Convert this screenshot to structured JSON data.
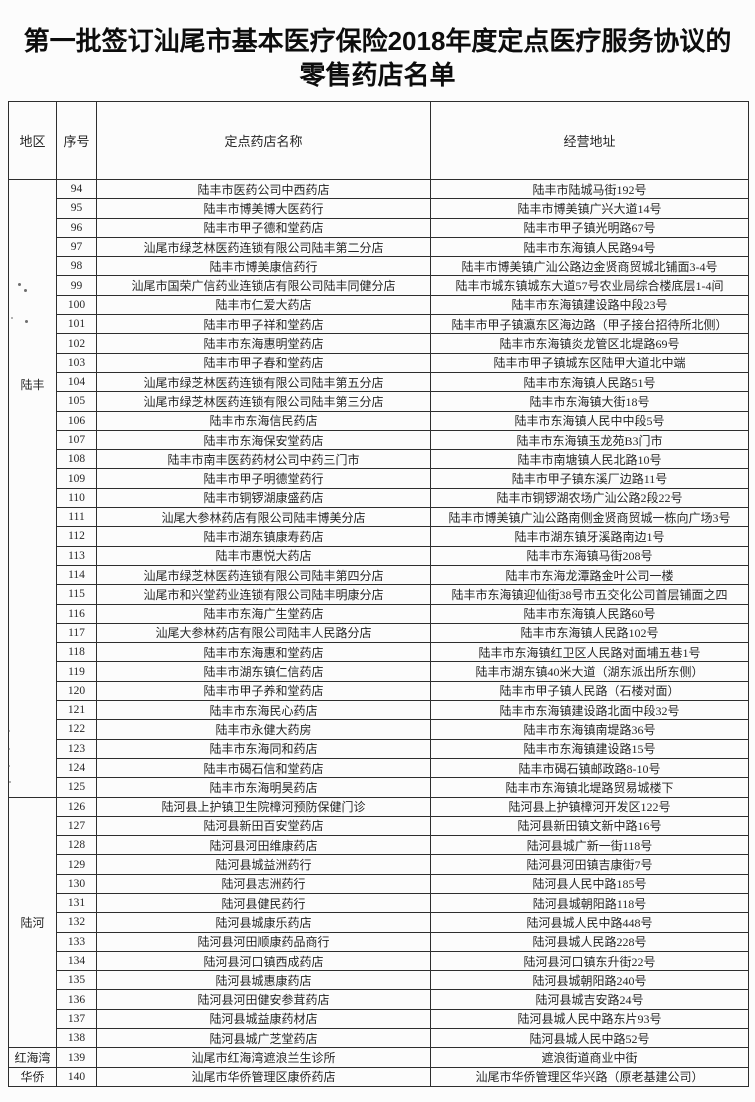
{
  "title": {
    "line1": "第一批签订汕尾市基本医疗保险2018年度定点医疗服务协议的",
    "line2": "零售药店名单"
  },
  "colors": {
    "paper": "#fcfcfc",
    "ink": "#262626",
    "border": "#2e2e2e"
  },
  "table": {
    "headers": [
      "地区",
      "序号",
      "定点药店名称",
      "经营地址"
    ],
    "regions": [
      {
        "name": "陆丰",
        "rows": [
          {
            "no": "94",
            "name": "陆丰市医药公司中西药店",
            "address": "陆丰市陆城马街192号"
          },
          {
            "no": "95",
            "name": "陆丰市博美博大医药行",
            "address": "陆丰市博美镇广兴大道14号"
          },
          {
            "no": "96",
            "name": "陆丰市甲子德和堂药店",
            "address": "陆丰市甲子镇光明路67号"
          },
          {
            "no": "97",
            "name": "汕尾市绿芝林医药连锁有限公司陆丰第二分店",
            "address": "陆丰市东海镇人民路94号"
          },
          {
            "no": "98",
            "name": "陆丰市博美康信药行",
            "address": "陆丰市博美镇广汕公路边金贤商贸城北铺面3-4号"
          },
          {
            "no": "99",
            "name": "汕尾市国荣广信药业连锁店有限公司陆丰同健分店",
            "address": "陆丰市城东镇城东大道57号农业局综合楼底层1-4间"
          },
          {
            "no": "100",
            "name": "陆丰市仁爱大药店",
            "address": "陆丰市东海镇建设路中段23号"
          },
          {
            "no": "101",
            "name": "陆丰市甲子祥和堂药店",
            "address": "陆丰市甲子镇瀛东区海边路（甲子接台招待所北侧）"
          },
          {
            "no": "102",
            "name": "陆丰市东海惠明堂药店",
            "address": "陆丰市东海镇炎龙管区北堤路69号"
          },
          {
            "no": "103",
            "name": "陆丰市甲子春和堂药店",
            "address": "陆丰市甲子镇城东区陆甲大道北中端"
          },
          {
            "no": "104",
            "name": "汕尾市绿芝林医药连锁有限公司陆丰第五分店",
            "address": "陆丰市东海镇人民路51号"
          },
          {
            "no": "105",
            "name": "汕尾市绿芝林医药连锁有限公司陆丰第三分店",
            "address": "陆丰市东海镇大街18号"
          },
          {
            "no": "106",
            "name": "陆丰市东海信民药店",
            "address": "陆丰市东海镇人民中中段5号"
          },
          {
            "no": "107",
            "name": "陆丰市东海保安堂药店",
            "address": "陆丰市东海镇玉龙苑B3门市"
          },
          {
            "no": "108",
            "name": "陆丰市南丰医药药材公司中药三门市",
            "address": "陆丰市南塘镇人民北路10号"
          },
          {
            "no": "109",
            "name": "陆丰市甲子明德堂药行",
            "address": "陆丰市甲子镇东溪厂边路11号"
          },
          {
            "no": "110",
            "name": "陆丰市铜锣湖康盛药店",
            "address": "陆丰市铜锣湖农场广汕公路2段22号"
          },
          {
            "no": "111",
            "name": "汕尾大参林药店有限公司陆丰博美分店",
            "address": "陆丰市博美镇广汕公路南侧金贤商贸城一栋向广场3号"
          },
          {
            "no": "112",
            "name": "陆丰市湖东镇康寿药店",
            "address": "陆丰市湖东镇牙溪路南边1号"
          },
          {
            "no": "113",
            "name": "陆丰市惠悦大药店",
            "address": "陆丰市东海镇马街208号"
          },
          {
            "no": "114",
            "name": "汕尾市绿芝林医药连锁有限公司陆丰第四分店",
            "address": "陆丰市东海龙潭路金叶公司一楼"
          },
          {
            "no": "115",
            "name": "汕尾市和兴堂药业连锁有限公司陆丰明康分店",
            "address": "陆丰市东海镇迎仙街38号市五交化公司首层铺面之四"
          },
          {
            "no": "116",
            "name": "陆丰市东海广生堂药店",
            "address": "陆丰市东海镇人民路60号"
          },
          {
            "no": "117",
            "name": "汕尾大参林药店有限公司陆丰人民路分店",
            "address": "陆丰市东海镇人民路102号"
          },
          {
            "no": "118",
            "name": "陆丰市东海惠和堂药店",
            "address": "陆丰市东海镇红卫区人民路对面埔五巷1号"
          },
          {
            "no": "119",
            "name": "陆丰市湖东镇仁信药店",
            "address": "陆丰市湖东镇40米大道（湖东派出所东侧）"
          },
          {
            "no": "120",
            "name": "陆丰市甲子养和堂药店",
            "address": "陆丰市甲子镇人民路（石楼对面）"
          },
          {
            "no": "121",
            "name": "陆丰市东海民心药店",
            "address": "陆丰市东海镇建设路北面中段32号"
          },
          {
            "no": "122",
            "name": "陆丰市永健大药房",
            "address": "陆丰市东海镇南堤路36号"
          },
          {
            "no": "123",
            "name": "陆丰市东海同和药店",
            "address": "陆丰市东海镇建设路15号"
          },
          {
            "no": "124",
            "name": "陆丰市碣石信和堂药店",
            "address": "陆丰市碣石镇邮政路8-10号"
          },
          {
            "no": "125",
            "name": "陆丰市东海明昊药店",
            "address": "陆丰市东海镇北堤路贸易城楼下"
          }
        ]
      },
      {
        "name": "陆河",
        "rows": [
          {
            "no": "126",
            "name": "陆河县上护镇卫生院樟河预防保健门诊",
            "address": "陆河县上护镇樟河开发区122号"
          },
          {
            "no": "127",
            "name": "陆河县新田百安堂药店",
            "address": "陆河县新田镇文新中路16号"
          },
          {
            "no": "128",
            "name": "陆河县河田维康药店",
            "address": "陆河县城广新一街118号"
          },
          {
            "no": "129",
            "name": "陆河县城益洲药行",
            "address": "陆河县河田镇吉康街7号"
          },
          {
            "no": "130",
            "name": "陆河县志洲药行",
            "address": "陆河县人民中路185号"
          },
          {
            "no": "131",
            "name": "陆河县健民药行",
            "address": "陆河县城朝阳路118号"
          },
          {
            "no": "132",
            "name": "陆河县城康乐药店",
            "address": "陆河县城人民中路448号"
          },
          {
            "no": "133",
            "name": "陆河县河田顺康药品商行",
            "address": "陆河县城人民路228号"
          },
          {
            "no": "134",
            "name": "陆河县河口镇西成药店",
            "address": "陆河县河口镇东升街22号"
          },
          {
            "no": "135",
            "name": "陆河县城惠康药店",
            "address": "陆河县城朝阳路240号"
          },
          {
            "no": "136",
            "name": "陆河县河田健安参茸药店",
            "address": "陆河县城吉安路24号"
          },
          {
            "no": "137",
            "name": "陆河县城益康药材店",
            "address": "陆河县城人民中路东片93号"
          },
          {
            "no": "138",
            "name": "陆河县城广芝堂药店",
            "address": "陆河县城人民中路52号"
          }
        ]
      },
      {
        "name": "红海湾",
        "rows": [
          {
            "no": "139",
            "name": "汕尾市红海湾遮浪兰生诊所",
            "address": "遮浪街道商业中街"
          }
        ]
      },
      {
        "name": "华侨",
        "rows": [
          {
            "no": "140",
            "name": "汕尾市华侨管理区康侨药店",
            "address": "汕尾市华侨管理区华兴路（原老基建公司）"
          }
        ]
      }
    ]
  }
}
